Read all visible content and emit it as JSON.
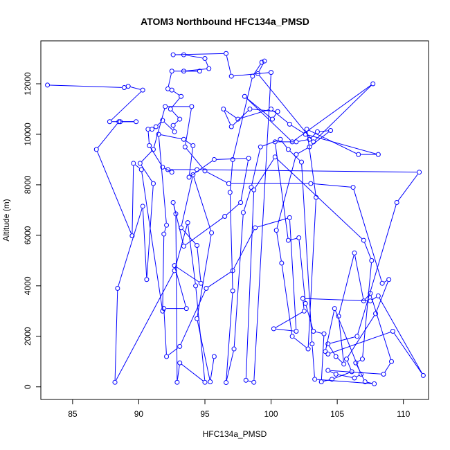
{
  "chart_data": {
    "type": "line",
    "title": "ATOM3 Northbound HFC134a_PMSD",
    "xlabel": "HFC134a_PMSD",
    "ylabel": "Altitude (m)",
    "xlim": [
      82.6,
      111.9
    ],
    "ylim": [
      -500,
      13700
    ],
    "x_ticks": [
      85,
      90,
      95,
      100,
      105,
      110
    ],
    "y_ticks": [
      0,
      2000,
      4000,
      6000,
      8000,
      10000,
      12000
    ],
    "grid": false,
    "line_color": "#0000ff",
    "marker": "open-circle",
    "series": [
      {
        "points": [
          [
            83.1,
            11950
          ],
          [
            88.9,
            11850
          ],
          [
            89.2,
            11900
          ],
          [
            90.3,
            11750
          ],
          [
            87.8,
            10500
          ],
          [
            88.6,
            10500
          ],
          [
            89.8,
            10500
          ],
          [
            88.5,
            10500
          ],
          [
            86.8,
            9400
          ],
          [
            89.5,
            5980
          ],
          [
            89.6,
            8850
          ],
          [
            90.2,
            8600
          ],
          [
            91.8,
            3000
          ],
          [
            91.9,
            6050
          ],
          [
            92.1,
            6400
          ],
          [
            91.5,
            10000
          ],
          [
            93.4,
            9800
          ],
          [
            94.1,
            9550
          ],
          [
            93.8,
            8300
          ],
          [
            95.7,
            9000
          ],
          [
            98.3,
            9050
          ],
          [
            97.7,
            7300
          ],
          [
            96.5,
            6750
          ],
          [
            93.4,
            5570
          ],
          [
            92.6,
            7300
          ],
          [
            92.8,
            6850
          ],
          [
            92.9,
            180
          ],
          [
            93.1,
            950
          ],
          [
            95.0,
            180
          ],
          [
            94.3,
            4000
          ],
          [
            93.7,
            6500
          ],
          [
            92.7,
            4600
          ],
          [
            88.2,
            180
          ],
          [
            88.4,
            3900
          ],
          [
            90.3,
            7150
          ],
          [
            90.6,
            4250
          ],
          [
            91.1,
            8050
          ],
          [
            90.1,
            8850
          ],
          [
            91.1,
            9400
          ],
          [
            92.0,
            11100
          ],
          [
            94.0,
            11100
          ],
          [
            93.5,
            9500
          ],
          [
            95.0,
            8550
          ],
          [
            96.8,
            8050
          ],
          [
            103.0,
            8050
          ],
          [
            106.2,
            7900
          ],
          [
            108.4,
            4100
          ],
          [
            108.9,
            4250
          ],
          [
            107.9,
            2900
          ],
          [
            105.7,
            1100
          ],
          [
            106.1,
            600
          ],
          [
            104.6,
            300
          ],
          [
            103.8,
            200
          ],
          [
            104.0,
            2100
          ],
          [
            103.2,
            2200
          ],
          [
            102.6,
            3300
          ],
          [
            102.1,
            5900
          ],
          [
            101.3,
            5800
          ],
          [
            100.3,
            9700
          ],
          [
            101.9,
            9700
          ],
          [
            102.9,
            9800
          ],
          [
            103.5,
            10100
          ],
          [
            104.5,
            10150
          ],
          [
            102.9,
            9500
          ],
          [
            101.9,
            9200
          ],
          [
            100.4,
            6200
          ],
          [
            100.8,
            4900
          ],
          [
            101.6,
            2000
          ],
          [
            102.8,
            1500
          ],
          [
            103.4,
            7500
          ],
          [
            102.7,
            10200
          ],
          [
            106.6,
            9200
          ],
          [
            108.1,
            9200
          ],
          [
            102.6,
            10000
          ],
          [
            101.4,
            10400
          ],
          [
            100.0,
            11000
          ],
          [
            97.5,
            10600
          ],
          [
            96.4,
            11000
          ],
          [
            97.0,
            10300
          ],
          [
            98.4,
            11000
          ],
          [
            100.5,
            10900
          ],
          [
            100.1,
            10600
          ],
          [
            98.0,
            11500
          ],
          [
            101.6,
            9700
          ],
          [
            107.7,
            12000
          ],
          [
            103.2,
            9700
          ],
          [
            99.0,
            12400
          ],
          [
            99.5,
            12900
          ],
          [
            99.3,
            12850
          ],
          [
            98.6,
            12300
          ],
          [
            97.1,
            9000
          ],
          [
            96.9,
            7700
          ],
          [
            97.1,
            3800
          ],
          [
            96.6,
            170
          ],
          [
            97.2,
            1500
          ],
          [
            97.9,
            6900
          ],
          [
            98.5,
            7900
          ],
          [
            99.2,
            9500
          ],
          [
            100.7,
            9800
          ],
          [
            101.3,
            9400
          ],
          [
            102.3,
            8900
          ],
          [
            103.1,
            1700
          ],
          [
            103.3,
            300
          ],
          [
            107.8,
            120
          ],
          [
            107.1,
            200
          ],
          [
            106.4,
            950
          ],
          [
            106.9,
            1100
          ],
          [
            107.6,
            5000
          ],
          [
            107.0,
            5800
          ],
          [
            100.3,
            9100
          ],
          [
            98.7,
            7800
          ],
          [
            98.1,
            260
          ],
          [
            98.7,
            180
          ],
          [
            100.0,
            12450
          ],
          [
            97.0,
            12300
          ],
          [
            96.6,
            13200
          ],
          [
            92.6,
            13150
          ],
          [
            93.4,
            13150
          ],
          [
            95.0,
            13000
          ],
          [
            95.3,
            12600
          ],
          [
            93.4,
            12500
          ],
          [
            94.6,
            12500
          ],
          [
            92.5,
            12500
          ],
          [
            92.2,
            11800
          ],
          [
            92.5,
            11750
          ],
          [
            93.2,
            11500
          ],
          [
            92.4,
            11000
          ],
          [
            93.1,
            10600
          ],
          [
            92.6,
            10350
          ],
          [
            92.7,
            10100
          ],
          [
            91.8,
            10550
          ],
          [
            91.3,
            10300
          ],
          [
            91.0,
            10200
          ],
          [
            90.7,
            10200
          ],
          [
            90.8,
            9550
          ],
          [
            91.8,
            8700
          ],
          [
            92.5,
            8500
          ],
          [
            92.2,
            8600
          ],
          [
            94.4,
            8600
          ],
          [
            111.2,
            8500
          ],
          [
            109.5,
            7300
          ],
          [
            106.5,
            2000
          ],
          [
            104.3,
            1700
          ],
          [
            104.9,
            1200
          ],
          [
            105.5,
            900
          ],
          [
            105.1,
            2800
          ],
          [
            106.3,
            5300
          ],
          [
            107.0,
            3400
          ],
          [
            107.5,
            3700
          ],
          [
            109.1,
            1000
          ],
          [
            108.5,
            500
          ],
          [
            104.3,
            650
          ],
          [
            104.9,
            500
          ],
          [
            106.3,
            350
          ],
          [
            106.8,
            500
          ],
          [
            104.8,
            3100
          ],
          [
            104.1,
            1400
          ],
          [
            104.3,
            1300
          ],
          [
            109.2,
            2200
          ],
          [
            111.5,
            450
          ],
          [
            108.1,
            3600
          ],
          [
            107.5,
            3400
          ],
          [
            102.4,
            3500
          ],
          [
            102.5,
            3000
          ],
          [
            100.2,
            2300
          ],
          [
            101.9,
            2200
          ],
          [
            101.4,
            6700
          ],
          [
            98.8,
            6300
          ],
          [
            97.1,
            4600
          ],
          [
            95.1,
            3900
          ],
          [
            93.1,
            1600
          ],
          [
            92.1,
            1200
          ],
          [
            91.9,
            3100
          ],
          [
            93.6,
            3100
          ],
          [
            92.7,
            4800
          ],
          [
            94.7,
            4100
          ],
          [
            94.4,
            5600
          ],
          [
            93.2,
            6300
          ],
          [
            94.1,
            8400
          ],
          [
            95.5,
            6100
          ],
          [
            94.4,
            2700
          ],
          [
            95.4,
            200
          ],
          [
            95.7,
            1200
          ]
        ]
      }
    ]
  }
}
